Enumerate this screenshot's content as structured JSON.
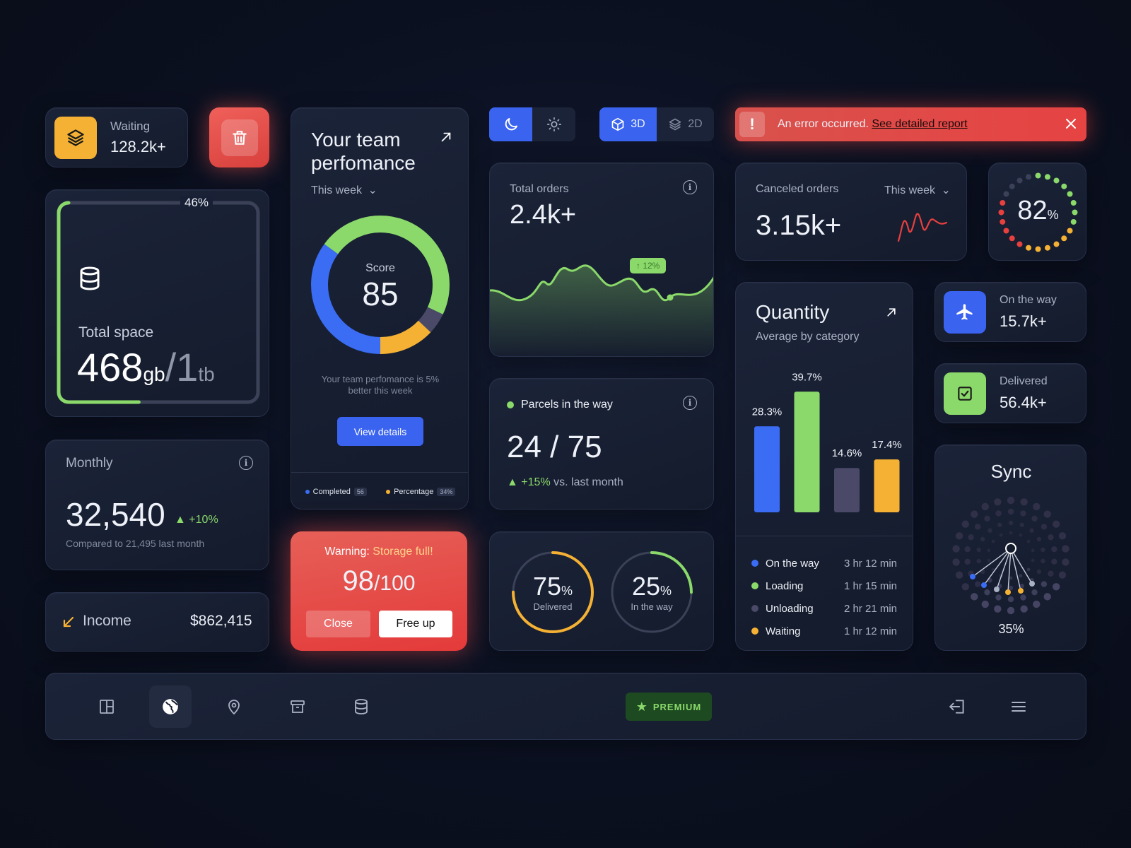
{
  "waiting": {
    "label": "Waiting",
    "value": "128.2k+",
    "icon": "layers-icon"
  },
  "delete": {
    "icon": "trash-icon"
  },
  "storage": {
    "percent_label": "46%",
    "percent": 46,
    "label": "Total space",
    "used": "468",
    "used_unit": "gb",
    "total": "1",
    "total_unit": "tb",
    "icon": "database-icon"
  },
  "monthly": {
    "label": "Monthly",
    "value": "32,540",
    "change": "+10%",
    "compare": "Compared to 21,495 last month"
  },
  "income": {
    "label": "Income",
    "value": "$862,415"
  },
  "team": {
    "title_line1": "Your team",
    "title_line2": "perfomance",
    "period": "This week",
    "score_label": "Score",
    "score": "85",
    "note_line1": "Your team perfomance is 5%",
    "note_line2": "better this week",
    "button": "View details",
    "legend": [
      {
        "label": "Completed",
        "badge": "56",
        "color": "#3a6cf4"
      },
      {
        "label": "Percentage",
        "badge": "34%",
        "color": "#f5b133"
      }
    ],
    "segments": [
      {
        "color": "#3a6cf4",
        "value": 0.35
      },
      {
        "color": "#8ad96a",
        "value": 0.47
      },
      {
        "color": "#4a4968",
        "value": 0.05
      },
      {
        "color": "#f5b133",
        "value": 0.13
      }
    ]
  },
  "warning": {
    "prefix": "Warning:",
    "message": "Storage full!",
    "value": "98",
    "total": "/100",
    "close": "Close",
    "free": "Free up"
  },
  "theme": {
    "dark_icon": "moon-icon",
    "light_icon": "sun-icon"
  },
  "view_mode": {
    "mode3d": "3D",
    "mode2d": "2D"
  },
  "error": {
    "message": "An error occurred.",
    "link": "See detailed report"
  },
  "orders": {
    "label": "Total orders",
    "value": "2.4k+",
    "badge": "↑ 12%"
  },
  "parcels": {
    "label": "Parcels in the way",
    "value": "24 / 75",
    "change": "+15%",
    "change_suffix": "vs. last month"
  },
  "rings": [
    {
      "value": "75",
      "unit": "%",
      "label": "Delivered",
      "percent": 75,
      "color": "#f5b133"
    },
    {
      "value": "25",
      "unit": "%",
      "label": "In the way",
      "percent": 25,
      "color": "#8ad96a"
    }
  ],
  "canceled": {
    "label": "Canceled orders",
    "period": "This week",
    "value": "3.15k+"
  },
  "gauge": {
    "value": "82",
    "unit": "%",
    "percent": 82
  },
  "quantity": {
    "title": "Quantity",
    "subtitle": "Average by category",
    "legend": [
      {
        "label": "On the way",
        "time": "3 hr 12 min",
        "color": "#3a6cf4"
      },
      {
        "label": "Loading",
        "time": "1 hr 15 min",
        "color": "#8ad96a"
      },
      {
        "label": "Unloading",
        "time": "2 hr 21 min",
        "color": "#4a4968"
      },
      {
        "label": "Waiting",
        "time": "1 hr 12 min",
        "color": "#f5b133"
      }
    ]
  },
  "chart_data": {
    "type": "bar",
    "categories": [
      "On the way",
      "Loading",
      "Unloading",
      "Waiting"
    ],
    "values": [
      28.3,
      39.7,
      14.6,
      17.4
    ],
    "labels": [
      "28.3%",
      "39.7%",
      "14.6%",
      "17.4%"
    ],
    "colors": [
      "#3a6cf4",
      "#8ad96a",
      "#4a4968",
      "#f5b133"
    ],
    "ylim": [
      0,
      40
    ],
    "grid": false
  },
  "ontheway": {
    "label": "On the way",
    "value": "15.7k+",
    "icon": "plane-icon"
  },
  "delivered": {
    "label": "Delivered",
    "value": "56.4k+",
    "icon": "checkbox-icon"
  },
  "sync": {
    "title": "Sync",
    "value": "35%"
  },
  "nav": {
    "premium": "PREMIUM",
    "items": [
      "layout-icon",
      "globe-icon",
      "location-pin-icon",
      "archive-icon",
      "database-icon"
    ]
  }
}
